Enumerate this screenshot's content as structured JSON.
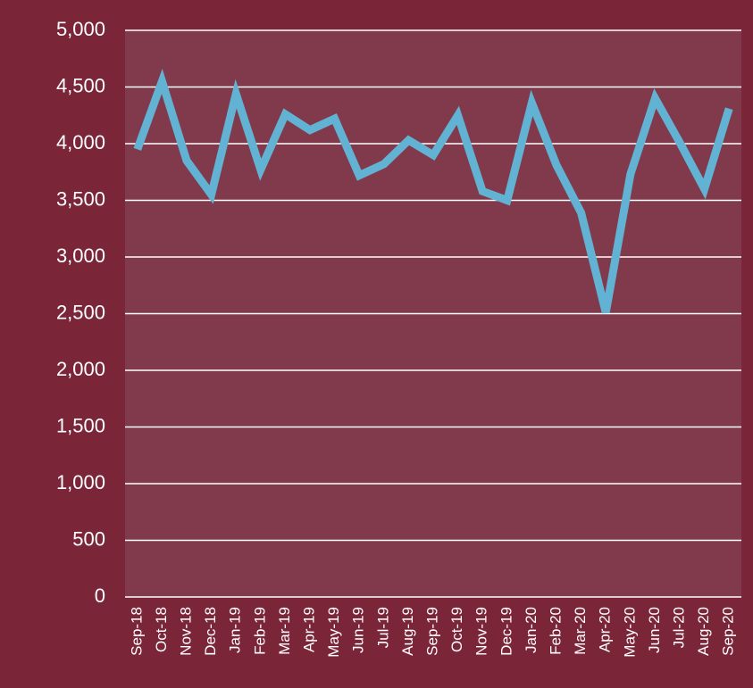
{
  "chart_data": {
    "type": "line",
    "categories": [
      "Sep-18",
      "Oct-18",
      "Nov-18",
      "Dec-18",
      "Jan-19",
      "Feb-19",
      "Mar-19",
      "Apr-19",
      "May-19",
      "Jun-19",
      "Jul-19",
      "Aug-19",
      "Sep-19",
      "Oct-19",
      "Nov-19",
      "Dec-19",
      "Jan-20",
      "Feb-20",
      "Mar-20",
      "Apr-20",
      "May-20",
      "Jun-20",
      "Jul-20",
      "Aug-20",
      "Sep-20"
    ],
    "series": [
      {
        "color": "#62b2d3",
        "values": [
          3950,
          4550,
          3850,
          3550,
          4440,
          3770,
          4260,
          4120,
          4220,
          3720,
          3820,
          4030,
          3900,
          4250,
          3580,
          3500,
          4360,
          3810,
          3390,
          2510,
          3730,
          4400,
          4010,
          3600,
          4310
        ]
      }
    ],
    "ylim": [
      0,
      5000
    ],
    "yticks": [
      0,
      500,
      {
        "value": 1000,
        "label": "1,000"
      },
      {
        "value": 1500,
        "label": "1,500"
      },
      {
        "value": 2000,
        "label": "2,000"
      },
      {
        "value": 2500,
        "label": "2,500"
      },
      {
        "value": 3000,
        "label": "3,000"
      },
      {
        "value": 3500,
        "label": "3,500"
      },
      {
        "value": 4000,
        "label": "4,000"
      },
      {
        "value": 4500,
        "label": "4,500"
      },
      {
        "value": 5000,
        "label": "5,000"
      }
    ],
    "grid": true
  }
}
